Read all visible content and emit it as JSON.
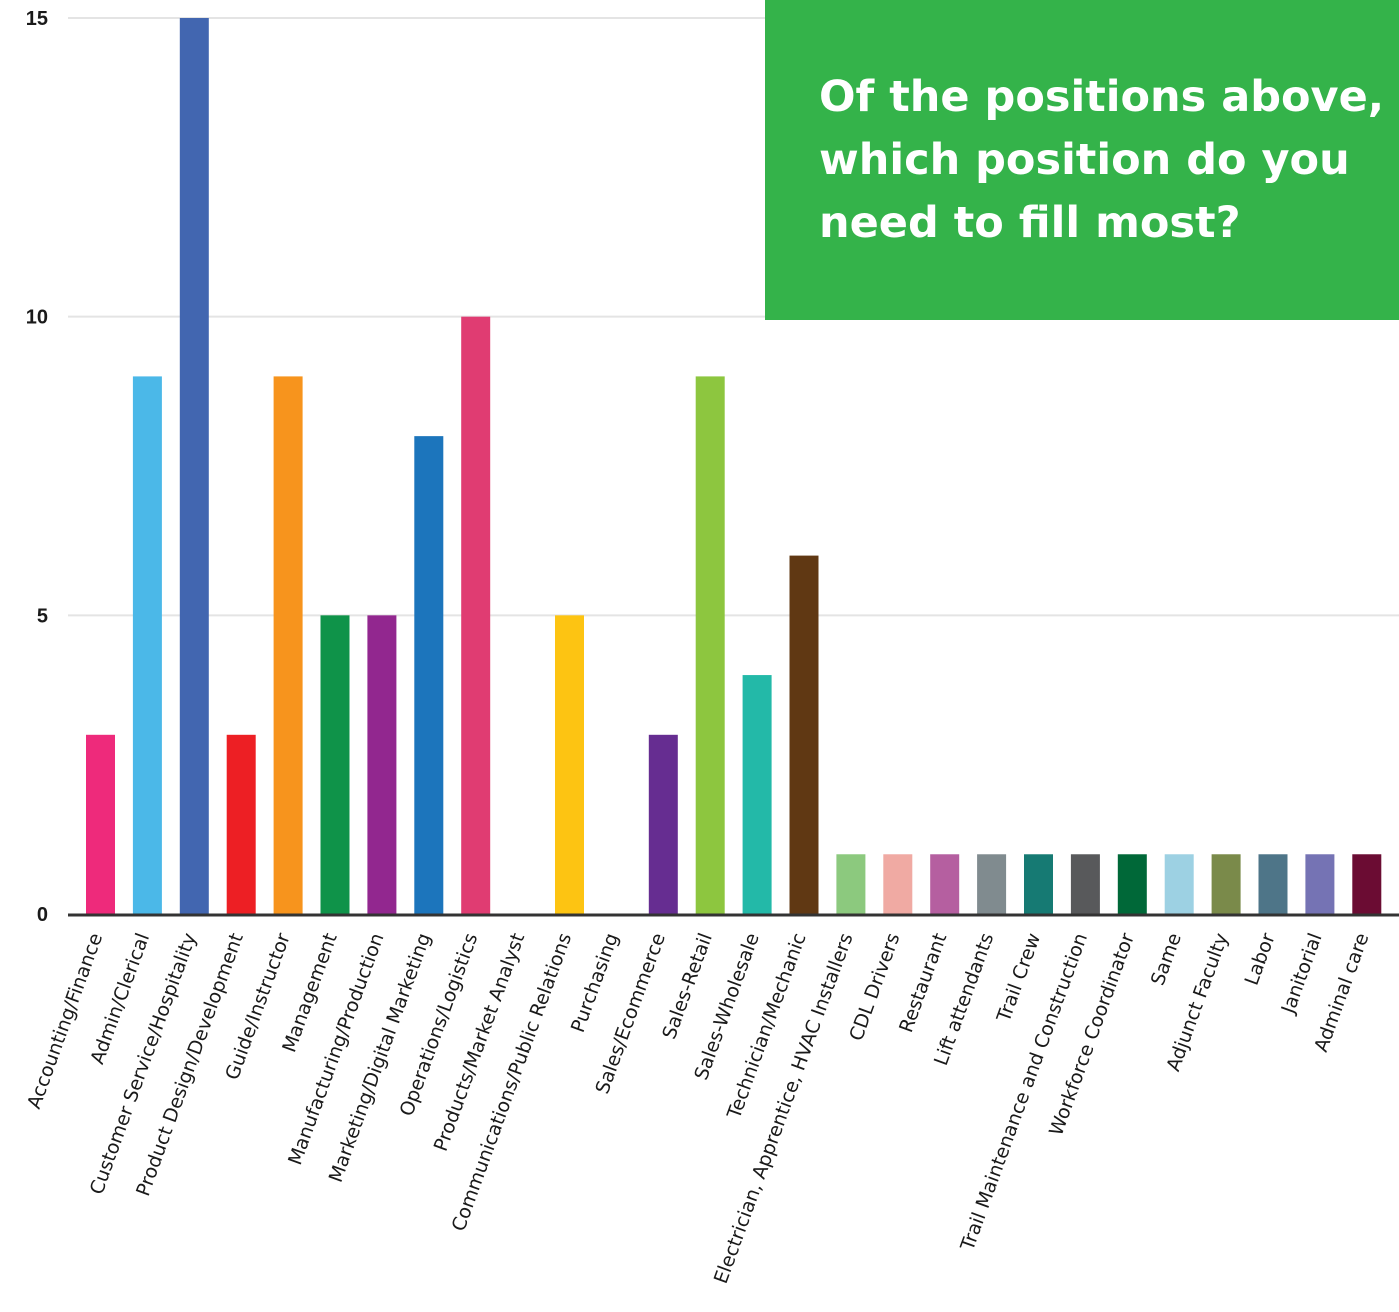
{
  "chart_data": {
    "type": "bar",
    "title": "Of the positions above,\nwhich position do you\nneed to fill most?",
    "xlabel": "",
    "ylabel": "",
    "ylim": [
      0,
      15
    ],
    "yticks": [
      "0",
      "5",
      "10",
      "15"
    ],
    "grid": true,
    "categories": [
      "Accounting/Finance",
      "Admin/Clerical",
      "Customer Service/Hospitality",
      "Product Design/Development",
      "Guide/Instructor",
      "Management",
      "Manufacturing/Production",
      "Marketing/Digital Marketing",
      "Operations/Logistics",
      "Products/Market Analyst",
      "Communications/Public Relations",
      "Purchasing",
      "Sales/Ecommerce",
      "Sales-Retail",
      "Sales-Wholesale",
      "Technician/Mechanic",
      "Electrician, Apprentice, HVAC Installers",
      "CDL Drivers",
      "Restaurant",
      "Lift attendants",
      "Trail Crew",
      "Trail Maintenance and Construction",
      "Workforce Coordinator",
      "Same",
      "Adjunct Faculty",
      "Labor",
      "Janitorial",
      "Adminal care"
    ],
    "values": [
      3,
      9,
      15,
      3,
      9,
      5,
      5,
      8,
      10,
      0,
      5,
      0,
      3,
      9,
      4,
      6,
      1,
      1,
      1,
      1,
      1,
      1,
      1,
      1,
      1,
      1,
      1,
      1
    ],
    "colors": [
      "#ee2a7b",
      "#4bb8e8",
      "#4266b0",
      "#ed1f24",
      "#f7941d",
      "#0f9349",
      "#92278f",
      "#1c75bc",
      "#e03c72",
      "#cccccc",
      "#fdc412",
      "#cccccc",
      "#662d91",
      "#8dc63f",
      "#23b9a8",
      "#603813",
      "#8cc97e",
      "#f0aaa3",
      "#b55fa0",
      "#808b8f",
      "#167a73",
      "#58595b",
      "#006838",
      "#9dd1e3",
      "#7a8a4a",
      "#4e7588",
      "#7573b4",
      "#6b0c33"
    ],
    "grid_color": "#e4e4e4",
    "axis_color": "#333333",
    "title_box_color": "#34b34a"
  }
}
